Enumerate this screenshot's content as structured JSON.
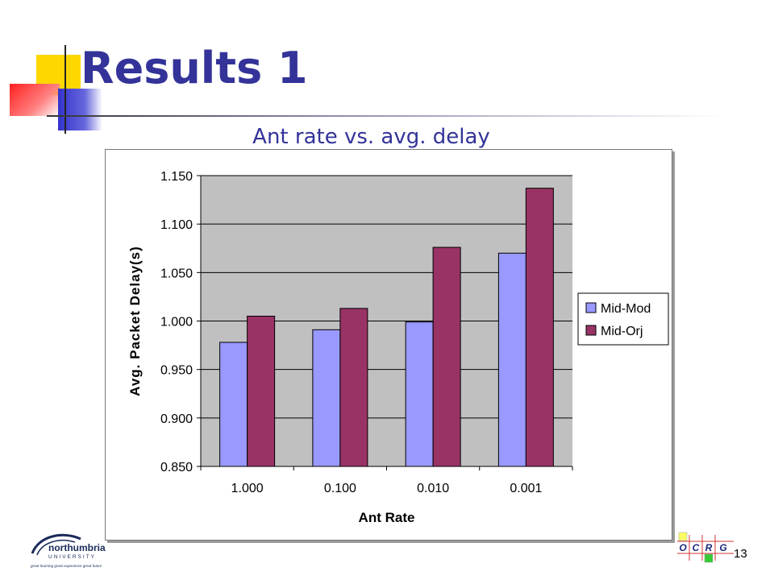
{
  "slide": {
    "title": "Results 1",
    "chart_heading": "Ant rate vs. avg. delay",
    "page_number": "13"
  },
  "logos": {
    "university_line1": "northumbria",
    "university_line2": "UNIVERSITY",
    "university_tagline": "great learning  great experience  great future",
    "group_letters": [
      "O",
      "C",
      "R",
      "G"
    ]
  },
  "colors": {
    "title": "#333399",
    "plot_bg": "#c0c0c0",
    "series_1": "#9999ff",
    "series_2": "#993366"
  },
  "chart_data": {
    "type": "bar",
    "title": "",
    "xlabel": "Ant Rate",
    "ylabel": "Avg. Packet Delay(s)",
    "categories": [
      "1.000",
      "0.100",
      "0.010",
      "0.001"
    ],
    "series": [
      {
        "name": "Mid-Mod",
        "values": [
          0.978,
          0.991,
          0.999,
          1.07
        ]
      },
      {
        "name": "Mid-Orj",
        "values": [
          1.005,
          1.013,
          1.076,
          1.137
        ]
      }
    ],
    "ylim": [
      0.85,
      1.15
    ],
    "yticks": [
      "0.850",
      "0.900",
      "0.950",
      "1.000",
      "1.050",
      "1.100",
      "1.150"
    ],
    "grid": true,
    "legend": "right"
  }
}
